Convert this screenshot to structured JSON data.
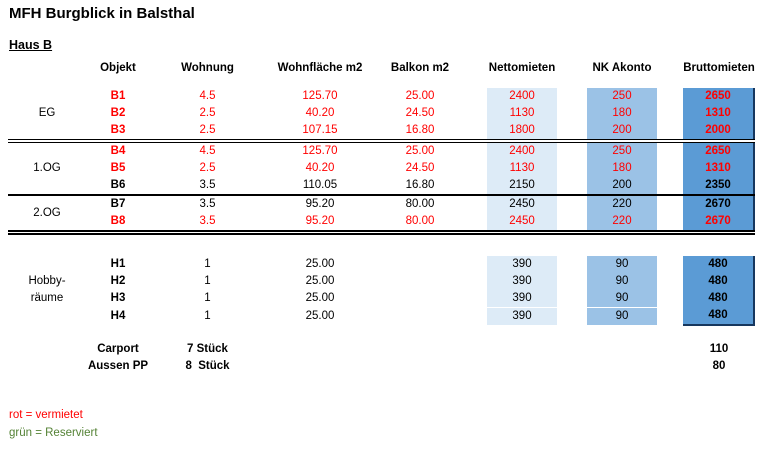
{
  "title": "MFH Burgblick in Balsthal",
  "subtitle": "Haus B",
  "columns": [
    "Objekt",
    "Wohnung",
    "Wohnfläche m2",
    "Balkon m2",
    "Nettomieten",
    "NK Akonto",
    "Bruttomieten"
  ],
  "colors": {
    "netto_bg": "#DDEBF7",
    "nk_bg": "#9BC2E6",
    "brutto_bg": "#5B9BD5",
    "band_edge": "#17375E",
    "red_text": "#FF0000",
    "green_text": "#548235"
  },
  "sections": [
    {
      "floor": "EG",
      "rows": [
        {
          "objekt": "B1",
          "wohnung": "4.5",
          "flaeche": "125.70",
          "balkon": "25.00",
          "netto": "2400",
          "nk": "250",
          "brutto": "2650",
          "status": "vermietet"
        },
        {
          "objekt": "B2",
          "wohnung": "2.5",
          "flaeche": "40.20",
          "balkon": "24.50",
          "netto": "1130",
          "nk": "180",
          "brutto": "1310",
          "status": "vermietet"
        },
        {
          "objekt": "B3",
          "wohnung": "2.5",
          "flaeche": "107.15",
          "balkon": "16.80",
          "netto": "1800",
          "nk": "200",
          "brutto": "2000",
          "status": "vermietet"
        }
      ]
    },
    {
      "floor": "1.OG",
      "rows": [
        {
          "objekt": "B4",
          "wohnung": "4.5",
          "flaeche": "125.70",
          "balkon": "25.00",
          "netto": "2400",
          "nk": "250",
          "brutto": "2650",
          "status": "vermietet"
        },
        {
          "objekt": "B5",
          "wohnung": "2.5",
          "flaeche": "40.20",
          "balkon": "24.50",
          "netto": "1130",
          "nk": "180",
          "brutto": "1310",
          "status": "vermietet"
        },
        {
          "objekt": "B6",
          "wohnung": "3.5",
          "flaeche": "110.05",
          "balkon": "16.80",
          "netto": "2150",
          "nk": "200",
          "brutto": "2350",
          "status": ""
        }
      ]
    },
    {
      "floor": "2.OG",
      "rows": [
        {
          "objekt": "B7",
          "wohnung": "3.5",
          "flaeche": "95.20",
          "balkon": "80.00",
          "netto": "2450",
          "nk": "220",
          "brutto": "2670",
          "status": ""
        },
        {
          "objekt": "B8",
          "wohnung": "3.5",
          "flaeche": "95.20",
          "balkon": "80.00",
          "netto": "2450",
          "nk": "220",
          "brutto": "2670",
          "status": "vermietet"
        }
      ]
    }
  ],
  "hobby": {
    "floor_line1": "Hobby-",
    "floor_line2": "räume",
    "rows": [
      {
        "objekt": "H1",
        "wohnung": "1",
        "flaeche": "25.00",
        "balkon": "",
        "netto": "390",
        "nk": "90",
        "brutto": "480"
      },
      {
        "objekt": "H2",
        "wohnung": "1",
        "flaeche": "25.00",
        "balkon": "",
        "netto": "390",
        "nk": "90",
        "brutto": "480"
      },
      {
        "objekt": "H3",
        "wohnung": "1",
        "flaeche": "25.00",
        "balkon": "",
        "netto": "390",
        "nk": "90",
        "brutto": "480"
      },
      {
        "objekt": "H4",
        "wohnung": "1",
        "flaeche": "25.00",
        "balkon": "",
        "netto": "390",
        "nk": "90",
        "brutto": "480"
      }
    ]
  },
  "parking": {
    "rows": [
      {
        "label": "Carport",
        "count": "7 Stück",
        "brutto": "110"
      },
      {
        "label": "Aussen PP",
        "count": "8  Stück",
        "brutto": "80"
      }
    ]
  },
  "legend": {
    "items": [
      {
        "text": "rot = vermietet"
      },
      {
        "text": "grün = Reserviert"
      }
    ]
  }
}
